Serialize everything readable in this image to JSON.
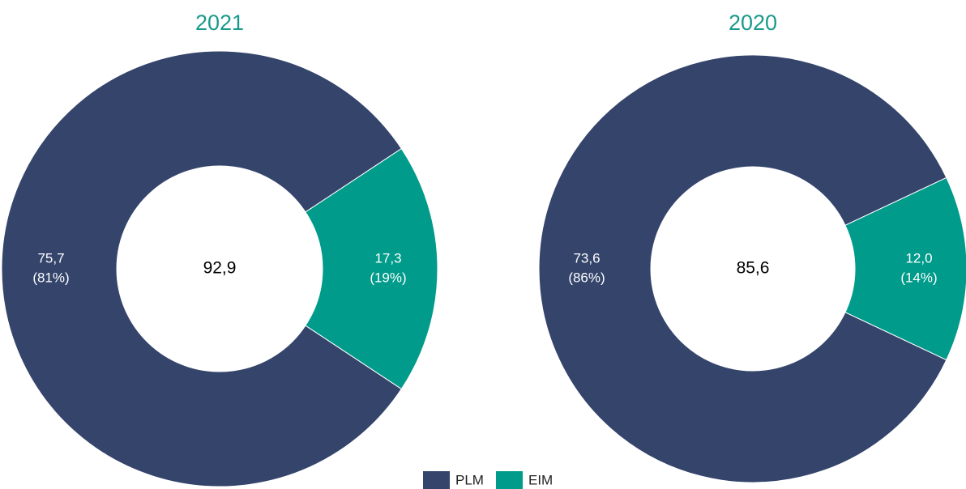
{
  "chart_data": [
    {
      "type": "donut",
      "title": "2021",
      "categories": [
        "PLM",
        "EIM"
      ],
      "values": [
        75.7,
        17.3
      ],
      "value_labels": [
        "75,7",
        "17,3"
      ],
      "percent_labels": [
        "(81%)",
        "(19%)"
      ],
      "total": 92.9,
      "total_label": "92,9",
      "colors": [
        "#34446b",
        "#009b8a"
      ]
    },
    {
      "type": "donut",
      "title": "2020",
      "categories": [
        "PLM",
        "EIM"
      ],
      "values": [
        73.6,
        12.0
      ],
      "value_labels": [
        "73,6",
        "12,0"
      ],
      "percent_labels": [
        "(86%)",
        "(14%)"
      ],
      "total": 85.6,
      "total_label": "85,6",
      "colors": [
        "#34446b",
        "#009b8a"
      ]
    }
  ]
}
